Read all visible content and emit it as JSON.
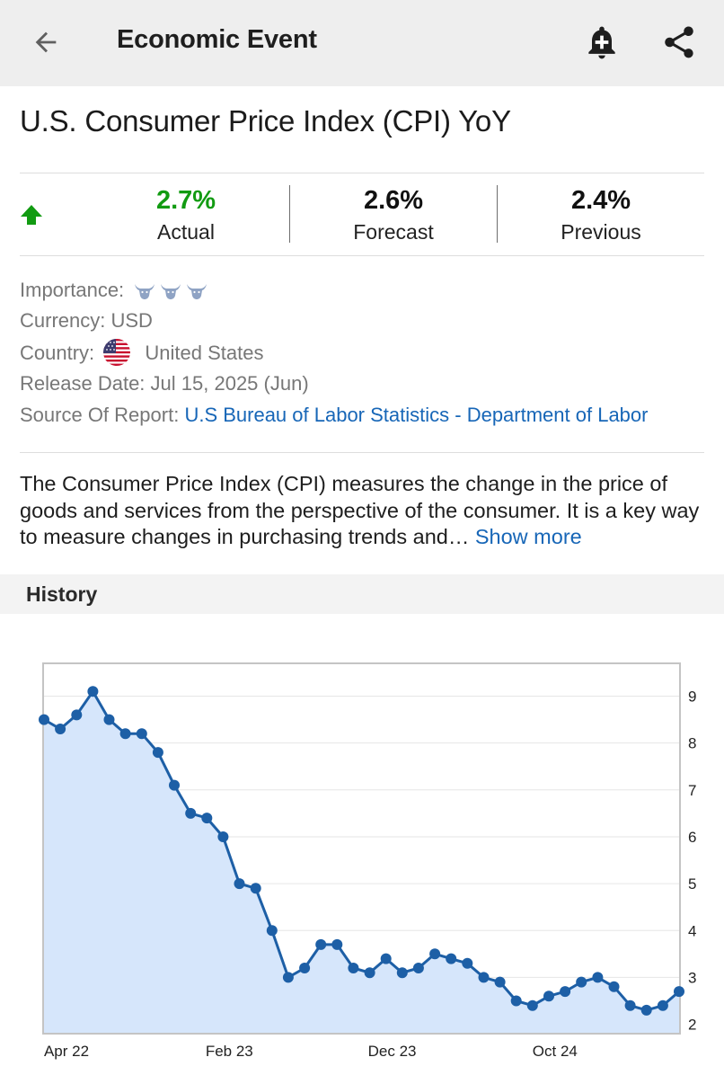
{
  "appbar": {
    "title": "Economic Event",
    "back_icon": "arrow-left-icon",
    "bell_icon": "bell-plus-icon",
    "share_icon": "share-icon"
  },
  "event": {
    "title": "U.S. Consumer Price Index (CPI) YoY"
  },
  "stats": {
    "trend_icon": "arrow-up-icon",
    "actual": {
      "value": "2.7%",
      "label": "Actual",
      "color": "#129b12"
    },
    "forecast": {
      "value": "2.6%",
      "label": "Forecast"
    },
    "previous": {
      "value": "2.4%",
      "label": "Previous"
    }
  },
  "details": {
    "importance_label": "Importance:",
    "importance_level": 3,
    "importance_icon": "bull-icon",
    "currency_label": "Currency:",
    "currency_value": "USD",
    "country_label": "Country:",
    "country_value": "United States",
    "country_flag_icon": "us-flag-icon",
    "release_label": "Release Date:",
    "release_value": "Jul 15, 2025 (Jun)",
    "source_label": "Source Of Report:",
    "source_value": "U.S Bureau of Labor Statistics - Department of Labor"
  },
  "description": {
    "text": "The Consumer Price Index (CPI) measures the change in the price of goods and services from the perspective of the consumer. It is a key way to measure changes in purchasing trends and…",
    "more_label": "Show more"
  },
  "history": {
    "label": "History"
  },
  "chart_data": {
    "type": "area",
    "x_tick_labels": [
      "Apr 22",
      "Feb 23",
      "Dec 23",
      "Oct 24"
    ],
    "x_tick_index": [
      0,
      10,
      20,
      30
    ],
    "y_ticks": [
      2,
      3,
      4,
      5,
      6,
      7,
      8,
      9
    ],
    "ylim": [
      1.8,
      9.7
    ],
    "y_axis_side": "right",
    "grid": true,
    "line_color": "#1d5fa6",
    "fill_color": "#d6e6fb",
    "values": [
      8.5,
      8.3,
      8.6,
      9.1,
      8.5,
      8.2,
      8.2,
      7.8,
      7.1,
      6.5,
      6.4,
      6.0,
      5.0,
      4.9,
      4.0,
      3.0,
      3.2,
      3.7,
      3.7,
      3.2,
      3.1,
      3.4,
      3.1,
      3.2,
      3.5,
      3.4,
      3.3,
      3.0,
      2.9,
      2.5,
      2.4,
      2.6,
      2.7,
      2.9,
      3.0,
      2.8,
      2.4,
      2.3,
      2.4,
      2.7
    ]
  }
}
